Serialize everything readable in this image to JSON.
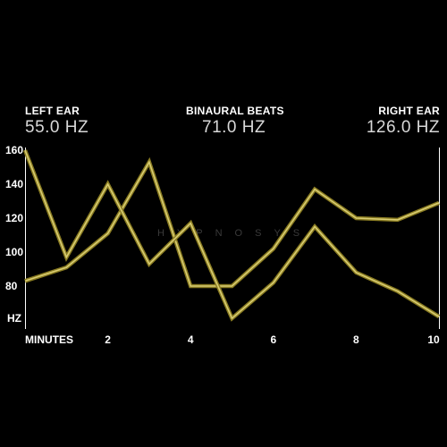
{
  "header": {
    "left": {
      "label": "LEFT EAR",
      "value": "55.0 HZ"
    },
    "center": {
      "label": "BINAURAL BEATS",
      "value": "71.0 HZ"
    },
    "right": {
      "label": "RIGHT EAR",
      "value": "126.0 HZ"
    }
  },
  "watermark": "HYPNOSYS",
  "colors": {
    "background": "#000000",
    "line_outer": "#8a7c22",
    "line_inner": "#d8cc72",
    "text": "#ffffff",
    "axis": "#ffffff"
  },
  "chart_data": {
    "type": "line",
    "xlabel": "MINUTES",
    "ylabel": "HZ",
    "x_ticks": [
      "2",
      "4",
      "6",
      "8",
      "10"
    ],
    "y_ticks": [
      "160",
      "140",
      "120",
      "100",
      "80"
    ],
    "xlim": [
      0,
      10
    ],
    "ylim": [
      60,
      160
    ],
    "grid": false,
    "x": [
      0,
      1,
      2,
      3,
      4,
      5,
      6,
      7,
      8,
      9,
      10
    ],
    "series": [
      {
        "values": [
          83,
          91,
          111,
          153,
          80,
          80,
          102,
          137,
          120,
          119,
          129
        ]
      },
      {
        "values": [
          160,
          97,
          140,
          93,
          117,
          61,
          82,
          115,
          88,
          77,
          62
        ]
      }
    ]
  }
}
